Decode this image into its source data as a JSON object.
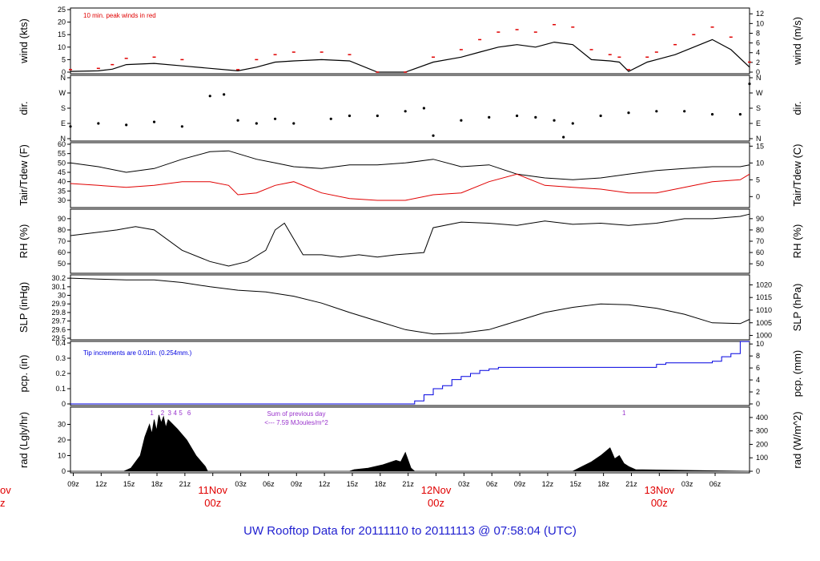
{
  "title": "UW Rooftop Data for 20111110  to  20111113 @ 07:58:04  (UTC)",
  "colors": {
    "red": "#e00000",
    "blue": "#0000e0",
    "purple": "#9933cc",
    "title_blue": "#1f1fd0",
    "axis": "#000000"
  },
  "x_ticks": [
    "09z",
    "12z",
    "15z",
    "18z",
    "21z",
    "00z",
    "03z",
    "06z",
    "09z",
    "12z",
    "15z",
    "18z",
    "21z",
    "00z",
    "03z",
    "06z",
    "09z",
    "12z",
    "15z",
    "18z",
    "21z",
    "00z",
    "03z",
    "06z"
  ],
  "days": [
    {
      "date": "11Nov",
      "hour": "00z"
    },
    {
      "date": "12Nov",
      "hour": "00z"
    },
    {
      "date": "13Nov",
      "hour": "00z"
    }
  ],
  "left_partial_day": {
    "date": "ov",
    "hour": "z"
  },
  "chart_data": [
    {
      "type": "line",
      "name": "wind",
      "ylabel": "wind (kts)",
      "ylabel_right": "wind (m/s)",
      "ylim": [
        0,
        25
      ],
      "yticks": [
        0,
        5,
        10,
        15,
        20,
        25
      ],
      "ylim_right": [
        0,
        12.86
      ],
      "yticks_right": [
        0,
        2,
        4,
        6,
        8,
        10,
        12
      ],
      "annotation": "10 min. peak winds in red",
      "x_hours": [
        0,
        6,
        9,
        12,
        18,
        24,
        36,
        40,
        44,
        48,
        54,
        60,
        66,
        72,
        78,
        84,
        88,
        92,
        96,
        100,
        104,
        108,
        112,
        116,
        118,
        120,
        124,
        126,
        130,
        134,
        138,
        142,
        146
      ],
      "values": [
        0.3,
        0.5,
        1.2,
        3,
        3.5,
        2.5,
        0.5,
        2,
        4,
        4.5,
        5,
        4.5,
        0,
        0,
        4,
        6,
        8,
        10,
        11,
        10,
        12,
        11,
        5,
        4.5,
        4,
        0.3,
        4,
        5,
        7,
        10,
        13,
        9,
        2
      ],
      "peak_values": [
        1,
        1.5,
        3,
        5.5,
        6,
        5,
        1,
        5,
        7,
        8,
        8,
        7,
        0,
        0,
        6,
        9,
        13,
        16,
        17,
        16,
        19,
        18,
        9,
        7,
        6,
        1,
        6,
        8,
        11,
        15,
        18,
        14,
        4
      ]
    },
    {
      "type": "scatter",
      "name": "dir",
      "ylabel": "dir.",
      "ylabel_right": "dir.",
      "yticks": [
        "N",
        "E",
        "S",
        "W",
        "N"
      ],
      "x_hours": [
        0,
        6,
        12,
        18,
        24,
        30,
        33,
        36,
        40,
        44,
        48,
        56,
        60,
        66,
        72,
        76,
        78,
        84,
        90,
        96,
        100,
        104,
        106,
        108,
        114,
        120,
        126,
        132,
        138,
        144,
        146
      ],
      "values": [
        0.8,
        1,
        0.9,
        1.1,
        0.8,
        2.8,
        2.9,
        1.2,
        1,
        1.3,
        1,
        1.3,
        1.5,
        1.5,
        1.8,
        2,
        0.2,
        1.2,
        1.4,
        1.5,
        1.4,
        1.2,
        0.1,
        1,
        1.5,
        1.7,
        1.8,
        1.8,
        1.6,
        1.6,
        3.6
      ]
    },
    {
      "type": "line",
      "name": "temp",
      "ylabel": "Tair/Tdew (F)",
      "ylabel_right": "Tair/Tdew (C)",
      "ylim": [
        27,
        60
      ],
      "yticks": [
        30,
        35,
        40,
        45,
        50,
        55,
        60
      ],
      "ylim_right": [
        -2.78,
        15.56
      ],
      "yticks_right": [
        0,
        5,
        10,
        15
      ],
      "x_hours": [
        0,
        6,
        12,
        18,
        24,
        30,
        34,
        36,
        40,
        44,
        48,
        54,
        60,
        66,
        72,
        78,
        84,
        90,
        96,
        102,
        108,
        114,
        120,
        126,
        132,
        138,
        144,
        146
      ],
      "series": [
        {
          "name": "Tair",
          "color": "#000000",
          "values": [
            50,
            48,
            45,
            47,
            52,
            56,
            56.5,
            55,
            52,
            50,
            48,
            47,
            49,
            49,
            50,
            52,
            48,
            49,
            44,
            42,
            41,
            42,
            44,
            46,
            47,
            48,
            48,
            49
          ]
        },
        {
          "name": "Tdew",
          "color": "#e00000",
          "values": [
            39,
            38,
            37,
            38,
            40,
            40,
            38,
            33,
            34,
            38,
            40,
            34,
            31,
            30,
            30,
            33,
            34,
            40,
            44,
            38,
            37,
            36,
            34,
            34,
            37,
            40,
            41,
            44
          ]
        }
      ]
    },
    {
      "type": "line",
      "name": "rh",
      "ylabel": "RH (%)",
      "ylabel_right": "RH (%)",
      "ylim": [
        43,
        97
      ],
      "yticks": [
        50,
        60,
        70,
        80,
        90
      ],
      "x_hours": [
        0,
        6,
        10,
        14,
        18,
        24,
        30,
        34,
        38,
        42,
        44,
        46,
        50,
        54,
        58,
        62,
        66,
        70,
        76,
        78,
        84,
        90,
        96,
        102,
        108,
        114,
        120,
        126,
        132,
        138,
        144,
        146
      ],
      "values": [
        75,
        78,
        80,
        83,
        80,
        62,
        52,
        48,
        52,
        62,
        80,
        86,
        58,
        58,
        56,
        58,
        56,
        58,
        60,
        82,
        87,
        86,
        84,
        88,
        85,
        86,
        84,
        86,
        90,
        90,
        92,
        94
      ]
    },
    {
      "type": "line",
      "name": "slp",
      "ylabel": "SLP (inHg)",
      "ylabel_right": "SLP (hPa)",
      "ylim": [
        29.5,
        30.22
      ],
      "yticks": [
        29.5,
        29.6,
        29.7,
        29.8,
        29.9,
        30,
        30.1,
        30.2
      ],
      "ylim_right": [
        998.9,
        1023.3
      ],
      "yticks_right": [
        1000,
        1005,
        1010,
        1015,
        1020
      ],
      "x_hours": [
        0,
        6,
        12,
        18,
        24,
        30,
        36,
        42,
        48,
        54,
        60,
        66,
        72,
        78,
        84,
        90,
        96,
        102,
        108,
        114,
        120,
        126,
        132,
        138,
        144,
        146
      ],
      "values": [
        30.2,
        30.19,
        30.18,
        30.18,
        30.15,
        30.1,
        30.06,
        30.04,
        29.99,
        29.91,
        29.8,
        29.7,
        29.6,
        29.55,
        29.56,
        29.6,
        29.7,
        29.8,
        29.86,
        29.9,
        29.89,
        29.85,
        29.78,
        29.68,
        29.67,
        29.72
      ]
    },
    {
      "type": "line",
      "name": "pcp",
      "ylabel": "pcp. (in)",
      "ylabel_right": "pcp. (mm)",
      "ylim": [
        0,
        0.4
      ],
      "yticks": [
        0,
        0.1,
        0.2,
        0.3,
        0.4
      ],
      "ylim_right": [
        0,
        10.16
      ],
      "yticks_right": [
        0,
        2,
        4,
        6,
        8,
        10
      ],
      "annotation": "Tip increments are 0.01in. (0.254mm.)",
      "x_hours": [
        0,
        72,
        74,
        76,
        78,
        80,
        82,
        84,
        86,
        88,
        90,
        92,
        96,
        110,
        124,
        126,
        128,
        134,
        138,
        140,
        142,
        144,
        146
      ],
      "values": [
        0,
        0,
        0.02,
        0.06,
        0.1,
        0.12,
        0.16,
        0.18,
        0.2,
        0.22,
        0.23,
        0.24,
        0.24,
        0.24,
        0.24,
        0.26,
        0.27,
        0.27,
        0.28,
        0.31,
        0.33,
        0.41,
        0.41
      ]
    },
    {
      "type": "area",
      "name": "rad",
      "ylabel": "rad (Lgly/hr)",
      "ylabel_right": "rad (W/m^2)",
      "ylim": [
        0,
        40
      ],
      "yticks": [
        0,
        10,
        20,
        30
      ],
      "ylim_right": [
        0,
        465
      ],
      "yticks_right": [
        0,
        100,
        200,
        300,
        400
      ],
      "annotation_lines": [
        "Sum of previous day",
        "<--- 7.59 MJoules/m^2"
      ],
      "markers": [
        "1",
        "2",
        "3",
        "4",
        "5",
        "6",
        "1"
      ],
      "x_hours": [
        0,
        11.5,
        13,
        15,
        16,
        17,
        17.5,
        18,
        18.5,
        19,
        19.5,
        20,
        20.5,
        21,
        22,
        23,
        25,
        27,
        29,
        29.5,
        34,
        60,
        61,
        64,
        67,
        70,
        71,
        72,
        73.2,
        74,
        108,
        110,
        112,
        114,
        116,
        117,
        118,
        119,
        120,
        121.5,
        146
      ],
      "values": [
        0,
        0,
        2,
        10,
        22,
        30,
        24,
        33,
        26,
        36,
        31,
        35,
        28,
        33,
        30,
        27,
        20,
        10,
        3,
        0,
        0,
        0,
        1,
        2,
        4,
        7,
        6,
        12,
        2,
        0,
        0,
        3,
        6,
        10,
        15,
        8,
        10,
        5,
        3,
        1,
        0
      ]
    }
  ]
}
